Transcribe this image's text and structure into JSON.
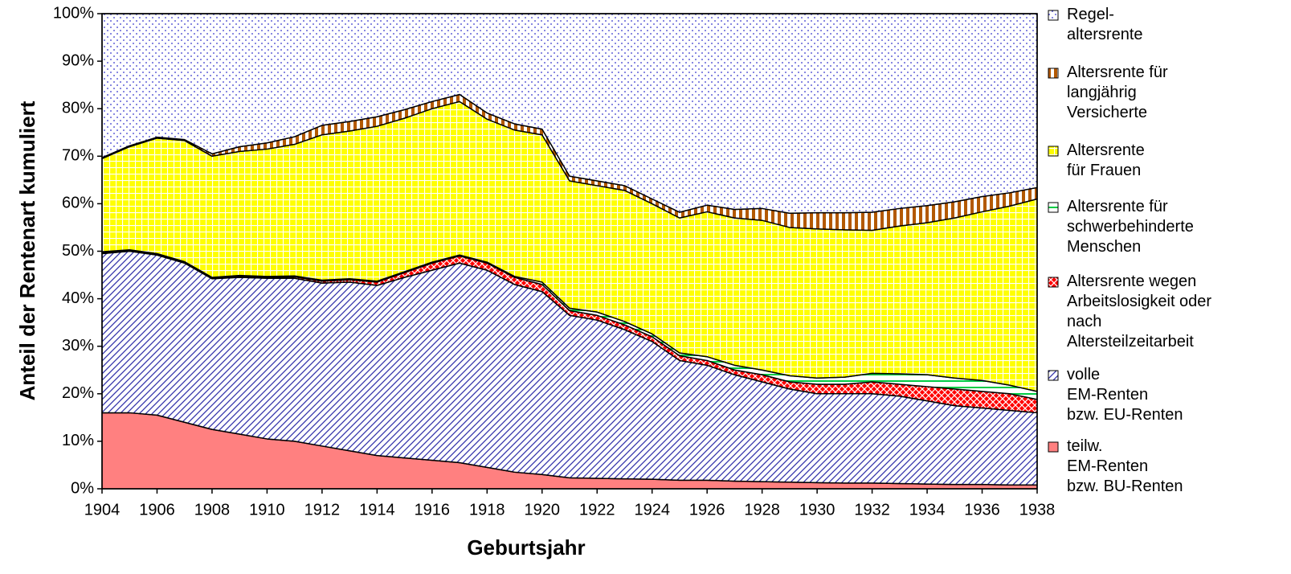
{
  "chart_data": {
    "type": "stacked-area",
    "x_label": "Geburtsjahr",
    "y_label": "Anteil der Rentenart kumuliert",
    "x": [
      1904,
      1905,
      1906,
      1907,
      1908,
      1909,
      1910,
      1911,
      1912,
      1913,
      1914,
      1915,
      1916,
      1917,
      1918,
      1919,
      1920,
      1921,
      1922,
      1923,
      1924,
      1925,
      1926,
      1927,
      1928,
      1929,
      1930,
      1931,
      1932,
      1933,
      1934,
      1935,
      1936,
      1937,
      1938
    ],
    "xlim": [
      1904,
      1938
    ],
    "xticks": [
      1904,
      1906,
      1908,
      1910,
      1912,
      1914,
      1916,
      1918,
      1920,
      1922,
      1924,
      1926,
      1928,
      1930,
      1932,
      1934,
      1936,
      1938
    ],
    "ylim": [
      0,
      100
    ],
    "yticks": [
      {
        "value": 0,
        "label": "0%"
      },
      {
        "value": 10,
        "label": "10%"
      },
      {
        "value": 20,
        "label": "20%"
      },
      {
        "value": 30,
        "label": "30%"
      },
      {
        "value": 40,
        "label": "40%"
      },
      {
        "value": 50,
        "label": "50%"
      },
      {
        "value": 60,
        "label": "60%"
      },
      {
        "value": 70,
        "label": "70%"
      },
      {
        "value": 80,
        "label": "80%"
      },
      {
        "value": 90,
        "label": "90%"
      },
      {
        "value": 100,
        "label": "100%"
      }
    ],
    "series": [
      {
        "name": "teilw.\nEM-Renten\nbzw. BU-Renten",
        "color": "#ff8080",
        "pattern": "solid",
        "values": [
          16,
          16,
          15.5,
          14,
          12.5,
          11.5,
          10.5,
          10,
          9,
          8,
          7,
          6.5,
          6,
          5.5,
          4.5,
          3.5,
          3,
          2.3,
          2.2,
          2.1,
          2,
          1.8,
          1.8,
          1.6,
          1.5,
          1.4,
          1.3,
          1.2,
          1.2,
          1.1,
          1,
          0.9,
          0.9,
          0.8,
          0.8
        ]
      },
      {
        "name": "volle\nEM-Renten\nbzw. EU-Renten",
        "color": "#3333aa",
        "pattern": "diagonal",
        "values": [
          33.5,
          34,
          33.7,
          33.5,
          31.7,
          33,
          33.8,
          34.3,
          34.3,
          35.5,
          35.8,
          38,
          40,
          42,
          41.5,
          39.5,
          38.5,
          34.2,
          33.3,
          31.4,
          29,
          25.2,
          24.2,
          22.4,
          21,
          19.6,
          18.7,
          18.8,
          18.8,
          18.4,
          17.5,
          16.6,
          16.1,
          15.7,
          15.2
        ]
      },
      {
        "name": "Altersrente wegen\nArbeitslosigkeit oder\nnach\nAltersteilzeitarbeit",
        "color": "#ff0000",
        "pattern": "crosshatch",
        "values": [
          0.2,
          0.1,
          0.1,
          0.1,
          0.1,
          0.2,
          0.2,
          0.3,
          0.4,
          0.5,
          0.7,
          1,
          1.5,
          1.5,
          1.5,
          1.5,
          1.5,
          1,
          1,
          1,
          1,
          1,
          1,
          1,
          1.5,
          1.5,
          2,
          2,
          2.5,
          2.5,
          3,
          3.5,
          3.5,
          3.5,
          2.8
        ]
      },
      {
        "name": "Altersrente für\nschwerbehinderte\nMenschen",
        "color": "#00cc44",
        "pattern": "hlines",
        "values": [
          0.2,
          0.2,
          0.2,
          0.2,
          0.2,
          0.2,
          0.2,
          0.2,
          0.2,
          0.2,
          0.2,
          0.2,
          0.2,
          0.2,
          0.2,
          0.2,
          0.5,
          0.5,
          0.7,
          0.7,
          0.6,
          0.6,
          0.8,
          1,
          1,
          1.3,
          1.3,
          1.5,
          1.8,
          2.2,
          2.5,
          2.3,
          2.3,
          1.8,
          1.7
        ]
      },
      {
        "name": "Altersrente\nfür Frauen",
        "color": "#ffff00",
        "pattern": "grid",
        "values": [
          19.6,
          21.7,
          24.3,
          25.5,
          25.5,
          26.1,
          26.8,
          27.7,
          30.6,
          31.1,
          32.6,
          32.3,
          32.3,
          32.3,
          30.1,
          30.8,
          31,
          26.8,
          26.6,
          27.6,
          27.4,
          28.4,
          30.5,
          31,
          31.5,
          31.2,
          31.4,
          31,
          30.1,
          31.1,
          32,
          33.7,
          35.5,
          37.7,
          40.5
        ]
      },
      {
        "name": "Altersrente für\nlangjährig\nVersicherte",
        "color": "#b35900",
        "pattern": "vstripes",
        "values": [
          0.2,
          0.2,
          0.2,
          0.2,
          0.5,
          1,
          1.3,
          1.6,
          2,
          2,
          2,
          1.8,
          1.5,
          1.5,
          1.3,
          1.3,
          1.2,
          1,
          1,
          1,
          1,
          1.2,
          1.4,
          1.8,
          2.5,
          3,
          3.4,
          3.6,
          3.8,
          3.7,
          3.6,
          3.4,
          3.2,
          2.8,
          2.4
        ]
      },
      {
        "name": "Regel-\naltersrente",
        "color": "#3333cc",
        "pattern": "dots",
        "values": [
          30.3,
          27.8,
          26,
          26.5,
          29.5,
          28,
          27.2,
          25.9,
          23.5,
          22.7,
          21.7,
          20.2,
          18.5,
          17,
          20.9,
          23.2,
          24.3,
          34.2,
          35.2,
          36.2,
          39,
          41.8,
          40.3,
          41.2,
          41,
          42,
          41.9,
          41.9,
          41.8,
          41,
          40.4,
          39.6,
          38.5,
          37.7,
          36.6
        ]
      }
    ]
  }
}
